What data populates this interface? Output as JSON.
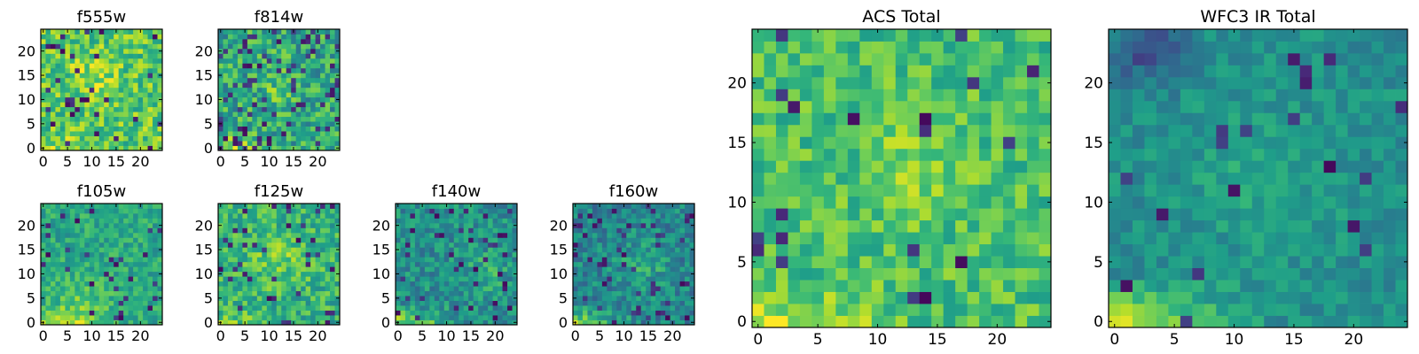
{
  "chart_data": [
    {
      "type": "heatmap",
      "title": "f555w",
      "xlabel": "",
      "ylabel": "",
      "grid_size": [
        25,
        25
      ],
      "xlim": [
        -0.5,
        24.5
      ],
      "ylim": [
        -0.5,
        24.5
      ],
      "xticks": [
        0,
        5,
        10,
        15,
        20
      ],
      "yticks": [
        0,
        5,
        10,
        15,
        20
      ],
      "xtick_labels": [
        "0",
        "5",
        "10",
        "15",
        "20"
      ],
      "ytick_labels": [
        "0",
        "5",
        "10",
        "15",
        "20"
      ],
      "colormap": "viridis",
      "value_range": [
        0,
        1
      ],
      "description_of_values": "pixel intensities; per-cell values not labeled",
      "seed": 11,
      "mean": 0.74,
      "spread": 0.2,
      "dark_fraction": 0.05,
      "bottom_glow": 0.15,
      "hotspots": [
        {
          "cx": 10,
          "cy": 15,
          "r": 4,
          "amp": 0.15
        }
      ]
    },
    {
      "type": "heatmap",
      "title": "f814w",
      "xlabel": "",
      "ylabel": "",
      "grid_size": [
        25,
        25
      ],
      "xlim": [
        -0.5,
        24.5
      ],
      "ylim": [
        -0.5,
        24.5
      ],
      "xticks": [
        0,
        5,
        10,
        15,
        20
      ],
      "yticks": [
        0,
        5,
        10,
        15,
        20
      ],
      "xtick_labels": [
        "0",
        "5",
        "10",
        "15",
        "20"
      ],
      "ytick_labels": [
        "0",
        "5",
        "10",
        "15",
        "20"
      ],
      "colormap": "viridis",
      "value_range": [
        0,
        1
      ],
      "seed": 23,
      "mean": 0.6,
      "spread": 0.22,
      "dark_fraction": 0.09,
      "bottom_glow": 0.3,
      "hotspots": [
        {
          "cx": 12,
          "cy": 12,
          "r": 4,
          "amp": 0.1
        }
      ]
    },
    {
      "type": "heatmap",
      "title": "f105w",
      "xlabel": "",
      "ylabel": "",
      "grid_size": [
        25,
        25
      ],
      "xlim": [
        -0.5,
        24.5
      ],
      "ylim": [
        -0.5,
        24.5
      ],
      "xticks": [
        0,
        5,
        10,
        15,
        20
      ],
      "yticks": [
        0,
        5,
        10,
        15,
        20
      ],
      "xtick_labels": [
        "0",
        "5",
        "10",
        "15",
        "20"
      ],
      "ytick_labels": [
        "0",
        "5",
        "10",
        "15",
        "20"
      ],
      "colormap": "viridis",
      "value_range": [
        0,
        1
      ],
      "seed": 37,
      "mean": 0.6,
      "spread": 0.14,
      "dark_fraction": 0.04,
      "bottom_glow": 0.3,
      "hotspots": [
        {
          "cx": 8,
          "cy": 3,
          "r": 6,
          "amp": 0.15
        }
      ]
    },
    {
      "type": "heatmap",
      "title": "f125w",
      "xlabel": "",
      "ylabel": "",
      "grid_size": [
        25,
        25
      ],
      "xlim": [
        -0.5,
        24.5
      ],
      "ylim": [
        -0.5,
        24.5
      ],
      "xticks": [
        0,
        5,
        10,
        15,
        20
      ],
      "yticks": [
        0,
        5,
        10,
        15,
        20
      ],
      "xtick_labels": [
        "0",
        "5",
        "10",
        "15",
        "20"
      ],
      "ytick_labels": [
        "0",
        "5",
        "10",
        "15",
        "20"
      ],
      "colormap": "viridis",
      "value_range": [
        0,
        1
      ],
      "seed": 41,
      "mean": 0.64,
      "spread": 0.18,
      "dark_fraction": 0.06,
      "bottom_glow": 0.15,
      "hotspots": [
        {
          "cx": 12,
          "cy": 13,
          "r": 5,
          "amp": 0.15
        }
      ]
    },
    {
      "type": "heatmap",
      "title": "f140w",
      "xlabel": "",
      "ylabel": "",
      "grid_size": [
        25,
        25
      ],
      "xlim": [
        -0.5,
        24.5
      ],
      "ylim": [
        -0.5,
        24.5
      ],
      "xticks": [
        0,
        5,
        10,
        15,
        20
      ],
      "yticks": [
        0,
        5,
        10,
        15,
        20
      ],
      "xtick_labels": [
        "0",
        "5",
        "10",
        "15",
        "20"
      ],
      "ytick_labels": [
        "0",
        "5",
        "10",
        "15",
        "20"
      ],
      "colormap": "viridis",
      "value_range": [
        0,
        1
      ],
      "seed": 53,
      "mean": 0.5,
      "spread": 0.16,
      "dark_fraction": 0.06,
      "bottom_glow": 0.35,
      "hotspots": [
        {
          "cx": 18,
          "cy": 10,
          "r": 4,
          "amp": 0.15
        }
      ]
    },
    {
      "type": "heatmap",
      "title": "f160w",
      "xlabel": "",
      "ylabel": "",
      "grid_size": [
        25,
        25
      ],
      "xlim": [
        -0.5,
        24.5
      ],
      "ylim": [
        -0.5,
        24.5
      ],
      "xticks": [
        0,
        5,
        10,
        15,
        20
      ],
      "yticks": [
        0,
        5,
        10,
        15,
        20
      ],
      "xtick_labels": [
        "0",
        "5",
        "10",
        "15",
        "20"
      ],
      "ytick_labels": [
        "0",
        "5",
        "10",
        "15",
        "20"
      ],
      "colormap": "viridis",
      "value_range": [
        0,
        1
      ],
      "seed": 67,
      "mean": 0.46,
      "spread": 0.16,
      "dark_fraction": 0.08,
      "bottom_glow": 0.35,
      "hotspots": [
        {
          "cx": 14,
          "cy": 12,
          "r": 5,
          "amp": 0.15
        }
      ]
    },
    {
      "type": "heatmap",
      "title": "ACS Total",
      "xlabel": "",
      "ylabel": "",
      "grid_size": [
        25,
        25
      ],
      "xlim": [
        -0.5,
        24.5
      ],
      "ylim": [
        -0.5,
        24.5
      ],
      "xticks": [
        0,
        5,
        10,
        15,
        20
      ],
      "yticks": [
        0,
        5,
        10,
        15,
        20
      ],
      "xtick_labels": [
        "0",
        "5",
        "10",
        "15",
        "20"
      ],
      "ytick_labels": [
        "0",
        "5",
        "10",
        "15",
        "20"
      ],
      "colormap": "viridis",
      "value_range": [
        0,
        1
      ],
      "seed": 79,
      "mean": 0.7,
      "spread": 0.15,
      "dark_fraction": 0.04,
      "bottom_glow": 0.25,
      "hotspots": [
        {
          "cx": 13,
          "cy": 13,
          "r": 4,
          "amp": 0.12
        }
      ]
    },
    {
      "type": "heatmap",
      "title": "WFC3 IR Total",
      "xlabel": "",
      "ylabel": "",
      "grid_size": [
        25,
        25
      ],
      "xlim": [
        -0.5,
        24.5
      ],
      "ylim": [
        -0.5,
        24.5
      ],
      "xticks": [
        0,
        5,
        10,
        15,
        20
      ],
      "yticks": [
        0,
        5,
        10,
        15,
        20
      ],
      "xtick_labels": [
        "0",
        "5",
        "10",
        "15",
        "20"
      ],
      "ytick_labels": [
        "0",
        "5",
        "10",
        "15",
        "20"
      ],
      "colormap": "viridis",
      "value_range": [
        0,
        1
      ],
      "seed": 97,
      "mean": 0.5,
      "spread": 0.1,
      "dark_fraction": 0.03,
      "bottom_glow": 0.42,
      "hotspots": [
        {
          "cx": 12,
          "cy": 12,
          "r": 6,
          "amp": 0.1
        },
        {
          "cx": 3,
          "cy": 23,
          "r": 3,
          "amp": -0.3
        }
      ]
    }
  ]
}
